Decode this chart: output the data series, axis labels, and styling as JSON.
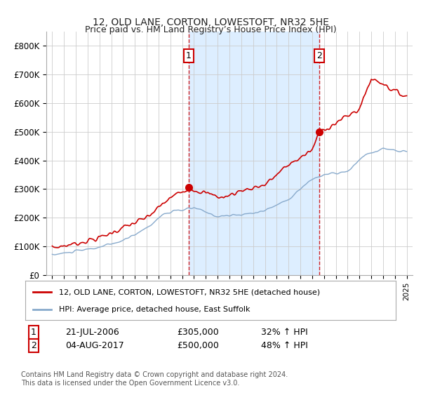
{
  "title": "12, OLD LANE, CORTON, LOWESTOFT, NR32 5HE",
  "subtitle": "Price paid vs. HM Land Registry’s House Price Index (HPI)",
  "legend_line1": "12, OLD LANE, CORTON, LOWESTOFT, NR32 5HE (detached house)",
  "legend_line2": "HPI: Average price, detached house, East Suffolk",
  "transaction1_label": "1",
  "transaction1_date": "21-JUL-2006",
  "transaction1_price": "£305,000",
  "transaction1_hpi": "32% ↑ HPI",
  "transaction1_x": 2006.55,
  "transaction1_y": 305000,
  "transaction2_label": "2",
  "transaction2_date": "04-AUG-2017",
  "transaction2_price": "£500,000",
  "transaction2_hpi": "48% ↑ HPI",
  "transaction2_x": 2017.59,
  "transaction2_y": 500000,
  "price_color": "#cc0000",
  "hpi_color": "#88aacc",
  "shade_color": "#ddeeff",
  "background_color": "#ffffff",
  "grid_color": "#cccccc",
  "ylim": [
    0,
    850000
  ],
  "xlim": [
    1994.5,
    2025.5
  ],
  "footer": "Contains HM Land Registry data © Crown copyright and database right 2024.\nThis data is licensed under the Open Government Licence v3.0."
}
